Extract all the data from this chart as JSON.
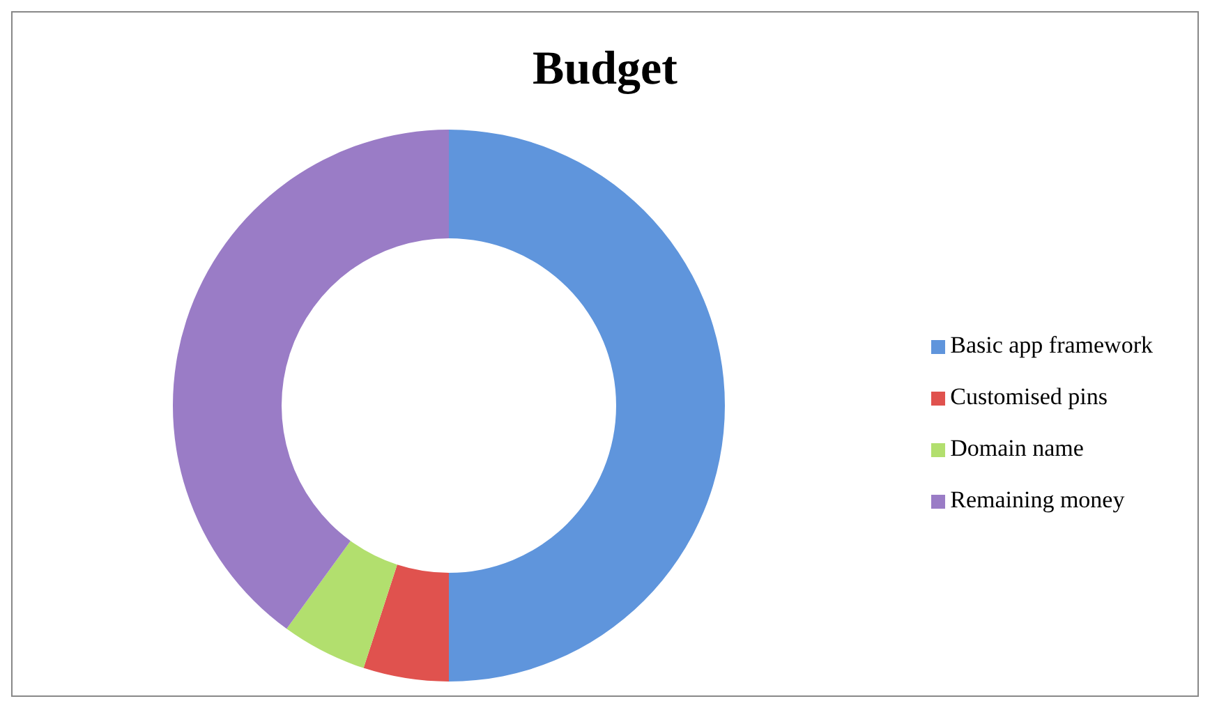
{
  "chart_data": {
    "type": "donut",
    "title": "Budget",
    "categories": [
      "Basic app framework",
      "Customised pins",
      "Domain name",
      "Remaining money"
    ],
    "values": [
      50,
      5,
      5,
      40
    ],
    "colors": [
      "#5f95dc",
      "#e0524e",
      "#b2df6e",
      "#9a7cc6"
    ],
    "legend": "right"
  }
}
